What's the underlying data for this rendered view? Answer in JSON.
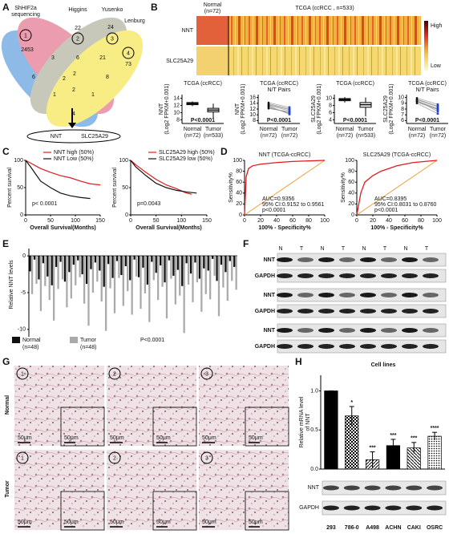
{
  "panel_labels": [
    "A",
    "B",
    "C",
    "D",
    "E",
    "F",
    "G",
    "H"
  ],
  "venn": {
    "set_names": [
      [
        "ShHIF2a",
        "sequencing"
      ],
      [
        "Higgins"
      ],
      [
        "Yusenko"
      ],
      [
        "Lenburg"
      ]
    ],
    "set_ids": [
      "1",
      "2",
      "3",
      "4"
    ],
    "counts": [
      2453,
      22,
      24,
      73,
      3,
      6,
      21,
      6,
      2,
      8,
      1,
      2,
      1,
      4,
      2
    ],
    "result": [
      "NNT",
      "SLC25A29"
    ]
  },
  "heatmap": {
    "normal_label": "Normal",
    "normal_n": "(n=72)",
    "tumor_label": "TCGA (ccRCC , n=533)",
    "rows": [
      "NNT",
      "SLC25A29"
    ],
    "scale": [
      "High",
      "Low"
    ]
  },
  "box_panels": [
    {
      "title": [
        "TCGA (ccRCC)"
      ],
      "ylabel": [
        "NNT",
        "(Log2 FPKM+0.001)"
      ],
      "ylim": [
        7,
        15
      ],
      "yticks": [
        8,
        10,
        12,
        14
      ],
      "p": "P<0.0001",
      "groups": [
        "Normal",
        "Tumor"
      ],
      "ns": [
        "(n=72)",
        "(n=533)"
      ],
      "stats": [
        [
          11.8,
          12.2,
          12.5,
          12.8,
          13.1
        ],
        [
          8.5,
          10.2,
          10.7,
          11.2,
          12.5
        ]
      ]
    },
    {
      "title": [
        "TCGA (ccRCC)",
        "N/T Pairs"
      ],
      "ylabel": [
        "NNT",
        "(Log2 FPKM+0.001)"
      ],
      "ylim": [
        7,
        17
      ],
      "yticks": [
        8,
        10,
        12,
        14,
        16
      ],
      "p": "P<0.0001",
      "groups": [
        "Normal",
        "Tumor"
      ],
      "ns": [
        "(n=72)",
        "(n=72)"
      ],
      "pairs": [
        [
          13.5,
          11.8
        ],
        [
          12.8,
          10.5
        ],
        [
          14.2,
          12.6
        ],
        [
          12.4,
          11.0
        ],
        [
          13.1,
          10.2
        ],
        [
          13.8,
          12.1
        ],
        [
          12.2,
          10.9
        ],
        [
          13.3,
          11.4
        ]
      ]
    },
    {
      "title": [
        "TCGA (ccRCC)"
      ],
      "ylabel": [
        "SLC25A29",
        "(Log2 FPKM+0.001)"
      ],
      "ylim": [
        3,
        11
      ],
      "yticks": [
        4,
        6,
        8,
        10
      ],
      "p": "P<0.0001",
      "groups": [
        "Normal",
        "Tumor"
      ],
      "ns": [
        "(n=72)",
        "(n=533)"
      ],
      "stats": [
        [
          8.8,
          9.3,
          9.6,
          9.9,
          10.3
        ],
        [
          5.0,
          7.5,
          8.2,
          8.8,
          10.2
        ]
      ]
    },
    {
      "title": [
        "TCGA (ccRCC)",
        "N/T Pairs"
      ],
      "ylabel": [
        "SLC25A29",
        "(Log2 FPKM+0.001)"
      ],
      "ylim": [
        5.5,
        10.5
      ],
      "yticks": [
        6,
        7,
        8,
        9,
        10
      ],
      "p": "P<0.0001",
      "groups": [
        "Normal",
        "Tumor"
      ],
      "ns": [
        "(n=72)",
        "(n=72)"
      ],
      "pairs": [
        [
          9.6,
          8.4
        ],
        [
          9.2,
          7.9
        ],
        [
          9.9,
          8.8
        ],
        [
          9.4,
          8.1
        ],
        [
          9.0,
          7.2
        ],
        [
          9.7,
          8.5
        ],
        [
          9.3,
          8.0
        ],
        [
          9.5,
          7.6
        ]
      ]
    }
  ],
  "survival": [
    {
      "legend": [
        "NNT high (50%)",
        "NNT Low (50%)"
      ],
      "colors": [
        "#e41a1c",
        "#111111"
      ],
      "p": "p< 0.0001",
      "ylabel": "Percent survival",
      "xlabel": "Overall Survival(Months)",
      "xlim": [
        0,
        150
      ],
      "ylim": [
        0,
        100
      ],
      "xticks": [
        0,
        50,
        100,
        150
      ],
      "yticks": [
        0,
        50,
        100
      ],
      "series": [
        {
          "x": [
            0,
            10,
            20,
            30,
            50,
            70,
            90,
            110,
            130,
            150
          ],
          "y": [
            100,
            95,
            90,
            85,
            78,
            72,
            68,
            62,
            57,
            55
          ]
        },
        {
          "x": [
            0,
            10,
            20,
            30,
            50,
            70,
            90,
            110,
            130
          ],
          "y": [
            100,
            88,
            75,
            62,
            50,
            40,
            35,
            32,
            30
          ]
        }
      ]
    },
    {
      "legend": [
        "SLC25A29 high (50%)",
        "SLC25A29 low (50%)"
      ],
      "colors": [
        "#e41a1c",
        "#111111"
      ],
      "p": "p=0.0043",
      "ylabel": "Percent survival",
      "xlabel": "Overall Survival(Months)",
      "xlim": [
        0,
        150
      ],
      "ylim": [
        0,
        100
      ],
      "xticks": [
        0,
        50,
        100,
        150
      ],
      "yticks": [
        0,
        50,
        100
      ],
      "series": [
        {
          "x": [
            0,
            10,
            20,
            30,
            50,
            70,
            90,
            110,
            120
          ],
          "y": [
            100,
            92,
            85,
            78,
            65,
            55,
            48,
            40,
            38
          ]
        },
        {
          "x": [
            0,
            10,
            20,
            30,
            50,
            70,
            90,
            110,
            130
          ],
          "y": [
            100,
            88,
            80,
            72,
            58,
            50,
            45,
            42,
            40
          ]
        }
      ]
    }
  ],
  "roc": [
    {
      "title": "NNT (TCGA-ccRCC)",
      "ylabel": "Sensitivity%",
      "xlabel": "100% - Specificity%",
      "xlim": [
        0,
        100
      ],
      "ylim": [
        0,
        100
      ],
      "xticks": [
        0,
        20,
        40,
        60,
        80,
        100
      ],
      "yticks": [
        0,
        20,
        40,
        60,
        80,
        100
      ],
      "annotation": [
        "AUC=0.9356",
        "95% CI:0.9152 to 0.9561",
        "p<0.0001"
      ],
      "color": "#e41a1c",
      "x": [
        0,
        2,
        5,
        10,
        20,
        40,
        60,
        100
      ],
      "y": [
        0,
        70,
        85,
        90,
        93,
        96,
        98,
        100
      ]
    },
    {
      "title": "SLC25A29 (TCGA-ccRCC)",
      "ylabel": "Sensitivity%",
      "xlabel": "100% - Specificity%",
      "xlim": [
        0,
        100
      ],
      "ylim": [
        0,
        100
      ],
      "xticks": [
        0,
        20,
        40,
        60,
        80,
        100
      ],
      "yticks": [
        0,
        20,
        40,
        60,
        80,
        100
      ],
      "annotation": [
        "AUC=0.8395",
        "95% CI:0.8031 to 0.8760",
        "p<0.0001"
      ],
      "color": "#e41a1c",
      "x": [
        0,
        5,
        10,
        20,
        30,
        50,
        70,
        100
      ],
      "y": [
        0,
        40,
        60,
        72,
        80,
        90,
        96,
        100
      ]
    }
  ],
  "paired_bars": {
    "ylabel": "Relative NNT levels",
    "ylim": [
      -11,
      1
    ],
    "yticks": [
      0,
      -5,
      -10
    ],
    "legend": [
      [
        "Normal",
        "(n=48)"
      ],
      [
        "Tumor",
        "(n=48)"
      ]
    ],
    "colors": [
      "#111111",
      "#aaaaaa"
    ],
    "p": "P<0.0001",
    "normal": [
      -2.1,
      -0.5,
      -3.2,
      -1.0,
      -2.8,
      -4.0,
      -1.5,
      -0.8,
      -3.5,
      -2.2,
      -1.2,
      -0.6,
      -2.5,
      -3.8,
      -1.8,
      -0.9,
      -2.0,
      -4.2,
      -1.1,
      -3.0,
      -0.7,
      -2.6,
      -1.4,
      -3.3,
      -0.5,
      -2.9,
      -1.6,
      -3.9,
      -0.8,
      -2.3,
      -1.3,
      -3.6,
      -0.6,
      -2.7,
      -1.9,
      -4.1,
      -1.0,
      -2.4,
      -0.9,
      -3.1,
      -1.7,
      -2.0,
      -0.4,
      -3.4,
      -1.2,
      -2.2,
      -0.7,
      -1.5
    ],
    "tumor": [
      -5.2,
      -3.8,
      -7.5,
      -4.1,
      -6.0,
      -8.8,
      -4.5,
      -3.2,
      -7.0,
      -5.8,
      -4.0,
      -2.9,
      -6.5,
      -9.5,
      -5.0,
      -3.5,
      -6.2,
      -10.2,
      -4.4,
      -7.8,
      -3.0,
      -6.8,
      -4.8,
      -8.0,
      -2.8,
      -7.2,
      -5.1,
      -9.0,
      -3.3,
      -6.0,
      -4.2,
      -8.5,
      -3.1,
      -6.6,
      -5.4,
      -10.5,
      -3.9,
      -6.3,
      -3.6,
      -7.6,
      -5.2,
      -5.9,
      -2.7,
      -8.2,
      -4.3,
      -6.1,
      -3.4,
      -4.6
    ]
  },
  "western": {
    "lanes": [
      "N",
      "T",
      "N",
      "T",
      "N",
      "T",
      "N",
      "T"
    ],
    "rows": [
      "NNT",
      "GAPDH",
      "NNT",
      "GAPDH",
      "NNT",
      "GAPDH"
    ]
  },
  "ihc": {
    "rows": [
      "Normal",
      "Tumor"
    ],
    "ids": [
      "1",
      "2",
      "3"
    ],
    "scale": "50μm"
  },
  "cell_lines": {
    "title": "Cell lines",
    "ylabel": [
      "Relative mRNA level",
      "of NNT"
    ],
    "ylim": [
      0,
      1.2
    ],
    "yticks": [
      {
        "value": 0,
        "label": "0.0"
      },
      0.5,
      {
        "value": 1,
        "label": "1.0"
      }
    ],
    "categories": [
      "293",
      "786-0",
      "A498",
      "ACHN",
      "CAKI",
      "OSRC"
    ],
    "values": [
      1,
      0.68,
      0.12,
      0.3,
      0.27,
      0.42
    ],
    "errors": [
      0,
      0.12,
      0.1,
      0.08,
      0.07,
      0.05
    ],
    "significance": [
      null,
      "*",
      "***",
      "***",
      "***",
      "****"
    ],
    "blot_rows": [
      "NNT",
      "GAPDH"
    ]
  }
}
